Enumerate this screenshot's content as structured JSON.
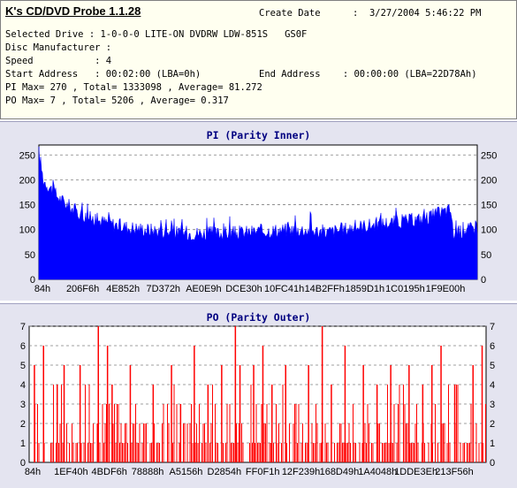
{
  "app_title": "K's CD/DVD Probe 1.1.28",
  "create_date_label": "Create Date",
  "create_date_value": ":  3/27/2004 5:46:22 PM",
  "selected_drive": "Selected Drive : 1-0-0-0 LITE-ON DVDRW LDW-851S   GS0F",
  "disc_manufacturer": "Disc Manufacturer :",
  "speed": "Speed           : 4",
  "start_address": "Start Address   : 00:02:00 (LBA=0h)",
  "end_address": "End Address    : 00:00:00 (LBA=22D78Ah)",
  "pi_stats": "PI Max= 270 , Total= 1333098 , Average= 81.272",
  "po_stats": "PO Max= 7 , Total= 5206 , Average= 0.317",
  "colors": {
    "pi_bar": "#0000ff",
    "po_bar": "#ff0000",
    "panel": "#e4e4f0"
  },
  "chart_data": [
    {
      "type": "area",
      "title": "PI (Parity Inner)",
      "x_ticks": [
        "84h",
        "206F6h",
        "4E852h",
        "7D372h",
        "AE0E9h",
        "DCE30h",
        "10FC41h",
        "14B2FFh",
        "1859D1h",
        "1C0195h",
        "1F9E00h"
      ],
      "y_ticks": [
        0,
        50,
        100,
        150,
        200,
        250
      ],
      "ylim": [
        0,
        270
      ],
      "grid": true,
      "profile_x": [
        0,
        0.003,
        0.01,
        0.03,
        0.05,
        0.08,
        0.11,
        0.15,
        0.2,
        0.25,
        0.3,
        0.38,
        0.45,
        0.52,
        0.6,
        0.66,
        0.72,
        0.78,
        0.84,
        0.88,
        0.92,
        0.94,
        0.945,
        0.97,
        1.0
      ],
      "profile_y": [
        255,
        240,
        200,
        180,
        160,
        140,
        125,
        115,
        105,
        100,
        95,
        92,
        93,
        98,
        100,
        95,
        105,
        112,
        118,
        122,
        135,
        140,
        90,
        98,
        105
      ]
    },
    {
      "type": "bar",
      "title": "PO (Parity Outer)",
      "x_ticks": [
        "84h",
        "1EF40h",
        "4BDF6h",
        "78888h",
        "A5156h",
        "D2854h",
        "FF0F1h",
        "12F239h",
        "168D49h",
        "1A4048h",
        "1DDE3Eh",
        "213F56h"
      ],
      "y_ticks": [
        0,
        1,
        2,
        3,
        4,
        5,
        6,
        7
      ],
      "ylim": [
        0,
        7
      ],
      "grid": true,
      "spikes_x": [
        0.01,
        0.03,
        0.06,
        0.075,
        0.11,
        0.15,
        0.17,
        0.18,
        0.22,
        0.27,
        0.31,
        0.33,
        0.36,
        0.39,
        0.42,
        0.45,
        0.46,
        0.49,
        0.51,
        0.53,
        0.56,
        0.61,
        0.64,
        0.66,
        0.69,
        0.73,
        0.76,
        0.79,
        0.83,
        0.86,
        0.88,
        0.9,
        0.93,
        0.97,
        0.99
      ],
      "spikes_y": [
        5,
        6,
        4,
        5,
        5,
        7,
        6,
        4,
        5,
        4,
        5,
        3,
        6,
        4,
        5,
        7,
        5,
        5,
        6,
        4,
        5,
        5,
        7,
        4,
        6,
        5,
        4,
        5,
        5,
        4,
        5,
        6,
        4,
        5,
        6
      ]
    }
  ]
}
